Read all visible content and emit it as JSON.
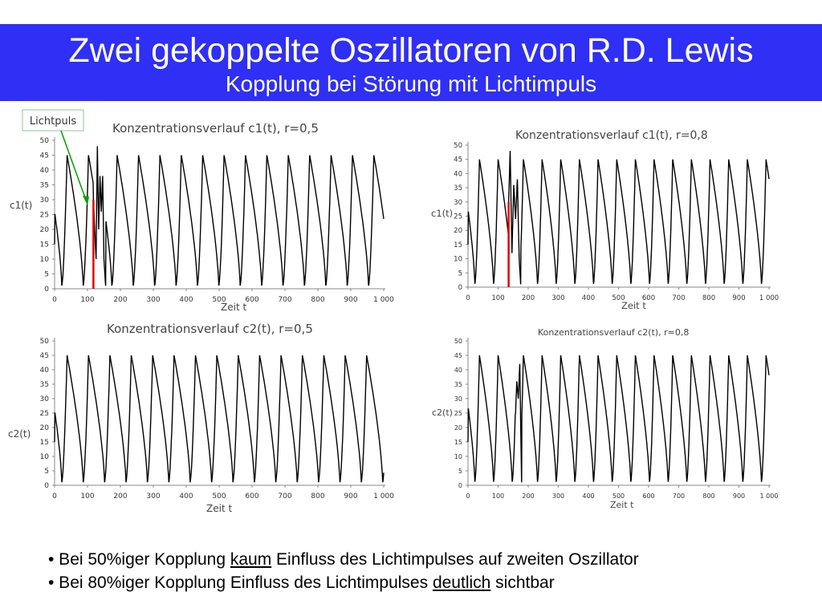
{
  "header": {
    "title": "Zwei gekoppelte Oszillatoren von R.D. Lewis",
    "subtitle": "Kopplung bei Störung mit Lichtimpuls"
  },
  "annotation": {
    "label": "Lichtpuls",
    "color": "#00a000"
  },
  "colors": {
    "banner": "#2f2ff5",
    "curve": "#000000",
    "pulse": "#e00000"
  },
  "chart_data": [
    {
      "type": "line",
      "title": "Konzentrationsverlauf c1(t), r=0,5",
      "xlabel": "Zeit t",
      "ylabel": "c1(t)",
      "xlim": [
        0,
        1000
      ],
      "ylim": [
        0,
        50
      ],
      "xticks": [
        "0",
        "100",
        "200",
        "300",
        "400",
        "500",
        "600",
        "700",
        "800",
        "900",
        "1 000"
      ],
      "yticks": [
        "0",
        "5",
        "10",
        "15",
        "20",
        "25",
        "30",
        "35",
        "40",
        "45",
        "50"
      ],
      "series": [
        {
          "period": 65,
          "min": 1,
          "max": 45,
          "first_peak": 38
        }
      ],
      "pulse": {
        "x": 118,
        "value": 30
      },
      "disturbance": [
        [
          118,
          30
        ],
        [
          126,
          10
        ],
        [
          130,
          48
        ],
        [
          134,
          20
        ],
        [
          138,
          38
        ],
        [
          142,
          26
        ],
        [
          146,
          38
        ],
        [
          150,
          10
        ],
        [
          155,
          1
        ]
      ],
      "grid": false
    },
    {
      "type": "line",
      "title": "Konzentrationsverlauf c1(t), r=0,8",
      "xlabel": "Zeit t",
      "ylabel": "c1(t)",
      "xlim": [
        0,
        1000
      ],
      "ylim": [
        0,
        50
      ],
      "xticks": [
        "0",
        "100",
        "200",
        "300",
        "400",
        "500",
        "600",
        "700",
        "800",
        "900",
        "1 000"
      ],
      "yticks": [
        "0",
        "5",
        "10",
        "15",
        "20",
        "25",
        "30",
        "35",
        "40",
        "45",
        "50"
      ],
      "series": [
        {
          "period": 62,
          "min": 1,
          "max": 45,
          "first_peak": 38
        }
      ],
      "pulse": {
        "x": 135,
        "value": 30
      },
      "disturbance": [
        [
          135,
          30
        ],
        [
          140,
          48
        ],
        [
          146,
          12
        ],
        [
          152,
          36
        ],
        [
          158,
          24
        ],
        [
          164,
          38
        ],
        [
          170,
          10
        ],
        [
          175,
          1
        ]
      ],
      "grid": false
    },
    {
      "type": "line",
      "title": "Konzentrationsverlauf c2(t), r=0,5",
      "xlabel": "Zeit t",
      "ylabel": "c2(t)",
      "xlim": [
        0,
        1000
      ],
      "ylim": [
        0,
        50
      ],
      "xticks": [
        "0",
        "100",
        "200",
        "300",
        "400",
        "500",
        "600",
        "700",
        "800",
        "900",
        "1 000"
      ],
      "yticks": [
        "0",
        "5",
        "10",
        "15",
        "20",
        "25",
        "30",
        "35",
        "40",
        "45",
        "50"
      ],
      "series": [
        {
          "period": 65,
          "min": 1,
          "max": 45,
          "first_peak": 38
        }
      ],
      "grid": false
    },
    {
      "type": "line",
      "title": "Konzentrationsverlauf c2(t), r=0,8",
      "xlabel": "Zeit t",
      "ylabel": "c2(t)",
      "xlim": [
        0,
        1000
      ],
      "ylim": [
        0,
        50
      ],
      "xticks": [
        "0",
        "100",
        "200",
        "300",
        "400",
        "500",
        "600",
        "700",
        "800",
        "900",
        "1 000"
      ],
      "yticks": [
        "0",
        "5",
        "10",
        "15",
        "20",
        "25",
        "30",
        "35",
        "40",
        "45",
        "50"
      ],
      "series": [
        {
          "period": 62,
          "min": 1,
          "max": 45,
          "first_peak": 38
        }
      ],
      "disturbance": [
        [
          158,
          25
        ],
        [
          162,
          36
        ],
        [
          167,
          30
        ],
        [
          172,
          42
        ],
        [
          178,
          1
        ]
      ],
      "grid": false
    }
  ],
  "bullets": [
    {
      "before": "• Bei 50%iger Kopplung ",
      "underline": "kaum",
      "after": " Einfluss des Lichtimpulses auf zweiten Oszillator"
    },
    {
      "before": "• Bei 80%iger Kopplung Einfluss des Lichtimpulses ",
      "underline": "deutlich",
      "after": " sichtbar"
    }
  ]
}
